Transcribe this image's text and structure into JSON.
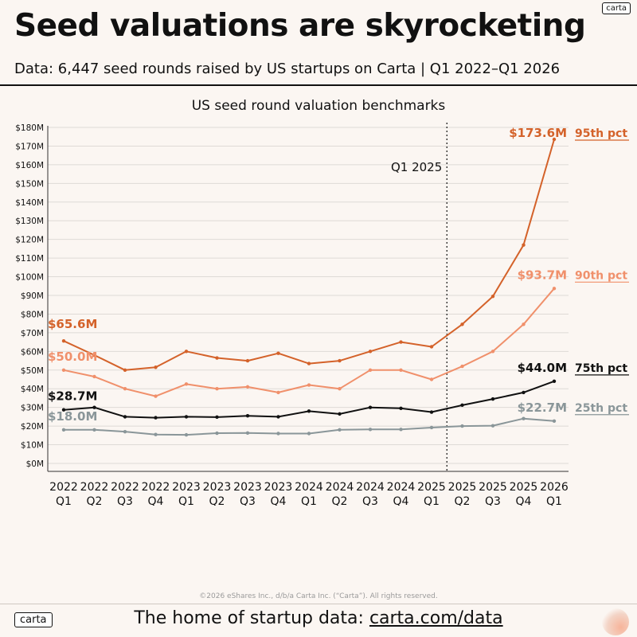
{
  "header": {
    "title": "Seed valuations are skyrocketing",
    "subtitle": "Data: 6,447 seed rounds raised by US startups on Carta | Q1 2022–Q1 2026",
    "logo": "carta"
  },
  "footer": {
    "copyright": "©2026 eShares Inc., d/b/a Carta Inc. (“Carta”). All rights reserved.",
    "logo": "carta",
    "text": "The home of startup data: ",
    "link": "carta.com/data"
  },
  "colors": {
    "p95": "#d4622a",
    "p90": "#f0906b",
    "p75": "#111111",
    "p25": "#8a9699",
    "grid": "#dedad6"
  },
  "chart_data": {
    "type": "line",
    "title": "US seed round valuation benchmarks",
    "x": [
      [
        "2022",
        "Q1"
      ],
      [
        "2022",
        "Q2"
      ],
      [
        "2022",
        "Q3"
      ],
      [
        "2022",
        "Q4"
      ],
      [
        "2023",
        "Q1"
      ],
      [
        "2023",
        "Q2"
      ],
      [
        "2023",
        "Q3"
      ],
      [
        "2023",
        "Q4"
      ],
      [
        "2024",
        "Q1"
      ],
      [
        "2024",
        "Q2"
      ],
      [
        "2024",
        "Q3"
      ],
      [
        "2024",
        "Q4"
      ],
      [
        "2025",
        "Q1"
      ],
      [
        "2025",
        "Q2"
      ],
      [
        "2025",
        "Q3"
      ],
      [
        "2025",
        "Q4"
      ],
      [
        "2026",
        "Q1"
      ]
    ],
    "ylim": [
      0,
      180
    ],
    "yticks": [
      "$0M",
      "$10M",
      "$20M",
      "$30M",
      "$40M",
      "$50M",
      "$60M",
      "$70M",
      "$80M",
      "$90M",
      "$100M",
      "$110M",
      "$120M",
      "$130M",
      "$140M",
      "$150M",
      "$160M",
      "$170M",
      "$180M"
    ],
    "grid": true,
    "marker": {
      "x_index": 12.5,
      "label": "Q1 2025"
    },
    "series": [
      {
        "name": "95th pct",
        "color": "#d4622a",
        "values": [
          65.6,
          58,
          50,
          51.5,
          60,
          56.5,
          55,
          59,
          53.5,
          55,
          60,
          65,
          62.5,
          74.5,
          89.5,
          117,
          173.6
        ],
        "first_label": "$65.6M",
        "last_label": "$173.6M"
      },
      {
        "name": "90th pct",
        "color": "#f0906b",
        "values": [
          50.0,
          46.5,
          40,
          36,
          42.5,
          40,
          41,
          38,
          42,
          40,
          50,
          50,
          45,
          52,
          60,
          74.5,
          93.7
        ],
        "first_label": "$50.0M",
        "last_label": "$93.7M"
      },
      {
        "name": "75th pct",
        "color": "#111111",
        "values": [
          28.7,
          30,
          25,
          24.5,
          25,
          24.8,
          25.5,
          25,
          28,
          26.5,
          30,
          29.5,
          27.5,
          31.2,
          34.5,
          38,
          44.0
        ],
        "first_label": "$28.7M",
        "last_label": "$44.0M"
      },
      {
        "name": "25th pct",
        "color": "#8a9699",
        "values": [
          18.0,
          18,
          17,
          15.5,
          15.3,
          16.2,
          16.3,
          16,
          16,
          18,
          18.2,
          18.2,
          19.2,
          20,
          20.2,
          24,
          22.7
        ],
        "first_label": "$18.0M",
        "last_label": "$22.7M"
      }
    ]
  }
}
